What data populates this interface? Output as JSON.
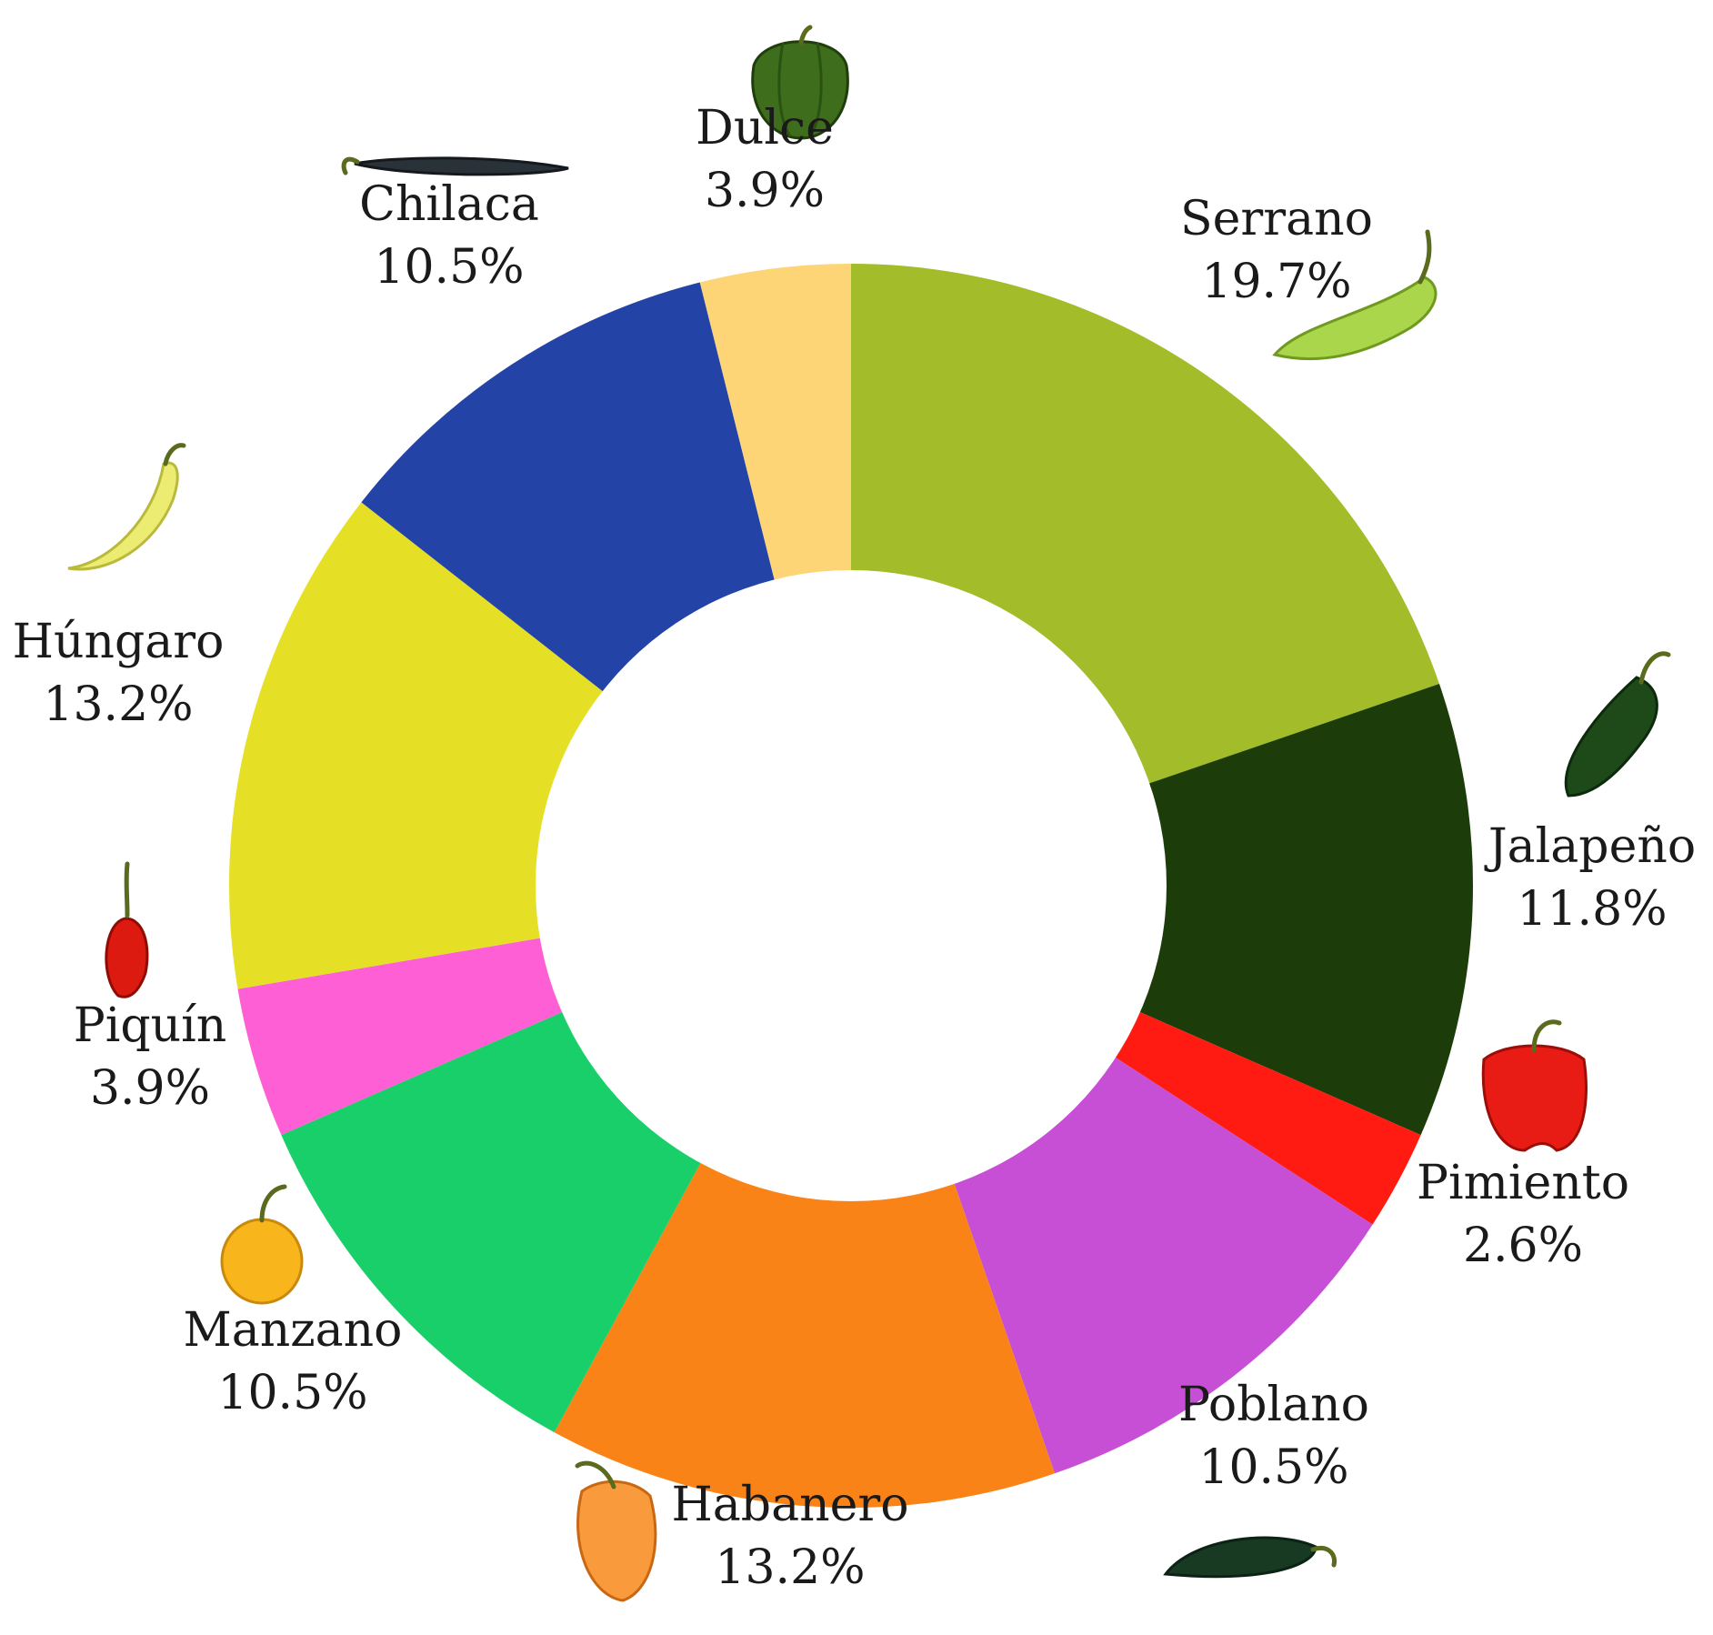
{
  "chart_data": {
    "type": "donut",
    "title": "",
    "unit": "%",
    "legend": "none",
    "labels_outside": true,
    "start_angle_deg": 0,
    "direction": "clockwise",
    "slices": [
      {
        "name": "Serrano",
        "value": 19.7,
        "label": "19.7%",
        "color": "#a2bc2a",
        "icon": "green-serrano-pepper"
      },
      {
        "name": "Jalapeño",
        "value": 11.8,
        "label": "11.8%",
        "color": "#1c3d0a",
        "icon": "dark-green-jalapeno-pepper"
      },
      {
        "name": "Pimiento",
        "value": 2.6,
        "label": "2.6%",
        "color": "#ff1a12",
        "icon": "red-bell-pepper"
      },
      {
        "name": "Poblano",
        "value": 10.5,
        "label": "10.5%",
        "color": "#c74fd6",
        "icon": "dark-poblano-pepper"
      },
      {
        "name": "Habanero",
        "value": 13.2,
        "label": "13.2%",
        "color": "#fa8317",
        "icon": "orange-habanero-pepper"
      },
      {
        "name": "Manzano",
        "value": 10.5,
        "label": "10.5%",
        "color": "#19cf69",
        "icon": "yellow-manzano-pepper"
      },
      {
        "name": "Piquín",
        "value": 3.9,
        "label": "3.9%",
        "color": "#fe5fd4",
        "icon": "small-red-piquin-pepper"
      },
      {
        "name": "Húngaro",
        "value": 13.2,
        "label": "13.2%",
        "color": "#e5e026",
        "icon": "yellow-hungarian-pepper"
      },
      {
        "name": "Chilaca",
        "value": 10.5,
        "label": "10.5%",
        "color": "#2443a7",
        "icon": "long-dark-chilaca-pepper"
      },
      {
        "name": "Dulce",
        "value": 3.9,
        "label": "3.9%",
        "color": "#fdd476",
        "icon": "green-sweet-pepper"
      }
    ]
  }
}
